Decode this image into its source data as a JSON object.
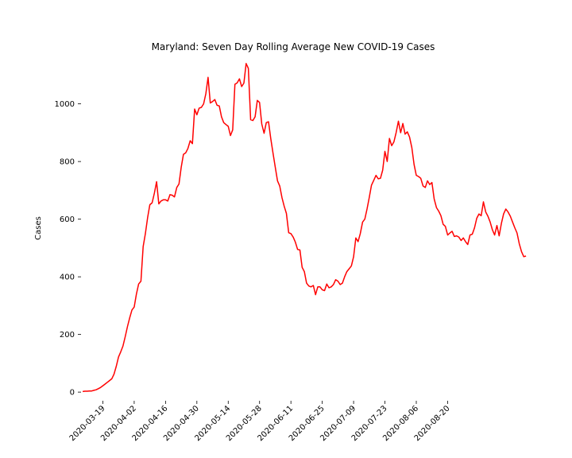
{
  "chart_data": {
    "type": "line",
    "title": "Maryland: Seven Day Rolling Average New COVID-19 Cases",
    "xlabel": "",
    "ylabel": "Cases",
    "ylim": [
      -30,
      1170
    ],
    "xlim": [
      "2020-03-05",
      "2020-09-19"
    ],
    "grid": false,
    "x_ticks": [
      "2020-03-19",
      "2020-04-02",
      "2020-04-16",
      "2020-04-30",
      "2020-05-14",
      "2020-05-28",
      "2020-06-11",
      "2020-06-25",
      "2020-07-09",
      "2020-07-23",
      "2020-08-06",
      "2020-08-20"
    ],
    "y_ticks": [
      0,
      200,
      400,
      600,
      800,
      1000
    ],
    "series": [
      {
        "color": "#ff0000",
        "points": [
          [
            "2020-03-10",
            2
          ],
          [
            "2020-03-11",
            3
          ],
          [
            "2020-03-12",
            3
          ],
          [
            "2020-03-13",
            4
          ],
          [
            "2020-03-14",
            4
          ],
          [
            "2020-03-15",
            6
          ],
          [
            "2020-03-16",
            8
          ],
          [
            "2020-03-17",
            12
          ],
          [
            "2020-03-18",
            16
          ],
          [
            "2020-03-19",
            22
          ],
          [
            "2020-03-20",
            28
          ],
          [
            "2020-03-21",
            34
          ],
          [
            "2020-03-22",
            40
          ],
          [
            "2020-03-23",
            46
          ],
          [
            "2020-03-24",
            62
          ],
          [
            "2020-03-25",
            90
          ],
          [
            "2020-03-26",
            122
          ],
          [
            "2020-03-27",
            140
          ],
          [
            "2020-03-28",
            160
          ],
          [
            "2020-03-29",
            192
          ],
          [
            "2020-03-30",
            228
          ],
          [
            "2020-03-31",
            258
          ],
          [
            "2020-04-01",
            285
          ],
          [
            "2020-04-02",
            295
          ],
          [
            "2020-04-03",
            340
          ],
          [
            "2020-04-04",
            375
          ],
          [
            "2020-04-05",
            385
          ],
          [
            "2020-04-06",
            505
          ],
          [
            "2020-04-07",
            550
          ],
          [
            "2020-04-08",
            605
          ],
          [
            "2020-04-09",
            650
          ],
          [
            "2020-04-10",
            657
          ],
          [
            "2020-04-11",
            690
          ],
          [
            "2020-04-12",
            730
          ],
          [
            "2020-04-13",
            653
          ],
          [
            "2020-04-14",
            663
          ],
          [
            "2020-04-15",
            667
          ],
          [
            "2020-04-16",
            667
          ],
          [
            "2020-04-17",
            663
          ],
          [
            "2020-04-18",
            685
          ],
          [
            "2020-04-19",
            683
          ],
          [
            "2020-04-20",
            677
          ],
          [
            "2020-04-21",
            710
          ],
          [
            "2020-04-22",
            722
          ],
          [
            "2020-04-23",
            780
          ],
          [
            "2020-04-24",
            825
          ],
          [
            "2020-04-25",
            830
          ],
          [
            "2020-04-26",
            845
          ],
          [
            "2020-04-27",
            872
          ],
          [
            "2020-04-28",
            862
          ],
          [
            "2020-04-29",
            982
          ],
          [
            "2020-04-30",
            962
          ],
          [
            "2020-05-01",
            985
          ],
          [
            "2020-05-02",
            988
          ],
          [
            "2020-05-03",
            1000
          ],
          [
            "2020-05-04",
            1035
          ],
          [
            "2020-05-05",
            1092
          ],
          [
            "2020-05-06",
            1003
          ],
          [
            "2020-05-07",
            1008
          ],
          [
            "2020-05-08",
            1015
          ],
          [
            "2020-05-09",
            995
          ],
          [
            "2020-05-10",
            993
          ],
          [
            "2020-05-11",
            955
          ],
          [
            "2020-05-12",
            935
          ],
          [
            "2020-05-13",
            928
          ],
          [
            "2020-05-14",
            922
          ],
          [
            "2020-05-15",
            890
          ],
          [
            "2020-05-16",
            910
          ],
          [
            "2020-05-17",
            1068
          ],
          [
            "2020-05-18",
            1073
          ],
          [
            "2020-05-19",
            1087
          ],
          [
            "2020-05-20",
            1060
          ],
          [
            "2020-05-21",
            1072
          ],
          [
            "2020-05-22",
            1140
          ],
          [
            "2020-05-23",
            1123
          ],
          [
            "2020-05-24",
            945
          ],
          [
            "2020-05-25",
            942
          ],
          [
            "2020-05-26",
            955
          ],
          [
            "2020-05-27",
            1012
          ],
          [
            "2020-05-28",
            1005
          ],
          [
            "2020-05-29",
            930
          ],
          [
            "2020-05-30",
            898
          ],
          [
            "2020-05-31",
            935
          ],
          [
            "2020-06-01",
            938
          ],
          [
            "2020-06-02",
            880
          ],
          [
            "2020-06-03",
            830
          ],
          [
            "2020-06-04",
            780
          ],
          [
            "2020-06-05",
            733
          ],
          [
            "2020-06-06",
            715
          ],
          [
            "2020-06-07",
            675
          ],
          [
            "2020-06-08",
            645
          ],
          [
            "2020-06-09",
            620
          ],
          [
            "2020-06-10",
            553
          ],
          [
            "2020-06-11",
            550
          ],
          [
            "2020-06-12",
            538
          ],
          [
            "2020-06-13",
            520
          ],
          [
            "2020-06-14",
            495
          ],
          [
            "2020-06-15",
            493
          ],
          [
            "2020-06-16",
            433
          ],
          [
            "2020-06-17",
            418
          ],
          [
            "2020-06-18",
            378
          ],
          [
            "2020-06-19",
            368
          ],
          [
            "2020-06-20",
            365
          ],
          [
            "2020-06-21",
            370
          ],
          [
            "2020-06-22",
            338
          ],
          [
            "2020-06-23",
            365
          ],
          [
            "2020-06-24",
            365
          ],
          [
            "2020-06-25",
            355
          ],
          [
            "2020-06-26",
            352
          ],
          [
            "2020-06-27",
            375
          ],
          [
            "2020-06-28",
            362
          ],
          [
            "2020-06-29",
            365
          ],
          [
            "2020-06-30",
            373
          ],
          [
            "2020-07-01",
            390
          ],
          [
            "2020-07-02",
            385
          ],
          [
            "2020-07-03",
            373
          ],
          [
            "2020-07-04",
            378
          ],
          [
            "2020-07-05",
            400
          ],
          [
            "2020-07-06",
            418
          ],
          [
            "2020-07-07",
            428
          ],
          [
            "2020-07-08",
            438
          ],
          [
            "2020-07-09",
            470
          ],
          [
            "2020-07-10",
            535
          ],
          [
            "2020-07-11",
            522
          ],
          [
            "2020-07-12",
            550
          ],
          [
            "2020-07-13",
            590
          ],
          [
            "2020-07-14",
            600
          ],
          [
            "2020-07-15",
            635
          ],
          [
            "2020-07-16",
            675
          ],
          [
            "2020-07-17",
            718
          ],
          [
            "2020-07-18",
            735
          ],
          [
            "2020-07-19",
            752
          ],
          [
            "2020-07-20",
            740
          ],
          [
            "2020-07-21",
            742
          ],
          [
            "2020-07-22",
            770
          ],
          [
            "2020-07-23",
            835
          ],
          [
            "2020-07-24",
            800
          ],
          [
            "2020-07-25",
            880
          ],
          [
            "2020-07-26",
            855
          ],
          [
            "2020-07-27",
            868
          ],
          [
            "2020-07-28",
            900
          ],
          [
            "2020-07-29",
            940
          ],
          [
            "2020-07-30",
            900
          ],
          [
            "2020-07-31",
            932
          ],
          [
            "2020-08-01",
            895
          ],
          [
            "2020-08-02",
            903
          ],
          [
            "2020-08-03",
            885
          ],
          [
            "2020-08-04",
            848
          ],
          [
            "2020-08-05",
            790
          ],
          [
            "2020-08-06",
            752
          ],
          [
            "2020-08-07",
            748
          ],
          [
            "2020-08-08",
            742
          ],
          [
            "2020-08-09",
            715
          ],
          [
            "2020-08-10",
            710
          ],
          [
            "2020-08-11",
            733
          ],
          [
            "2020-08-12",
            720
          ],
          [
            "2020-08-13",
            727
          ],
          [
            "2020-08-14",
            670
          ],
          [
            "2020-08-15",
            640
          ],
          [
            "2020-08-16",
            628
          ],
          [
            "2020-08-17",
            612
          ],
          [
            "2020-08-18",
            582
          ],
          [
            "2020-08-19",
            575
          ],
          [
            "2020-08-20",
            545
          ],
          [
            "2020-08-21",
            552
          ],
          [
            "2020-08-22",
            558
          ],
          [
            "2020-08-23",
            540
          ],
          [
            "2020-08-24",
            542
          ],
          [
            "2020-08-25",
            538
          ],
          [
            "2020-08-26",
            526
          ],
          [
            "2020-08-27",
            535
          ],
          [
            "2020-08-28",
            522
          ],
          [
            "2020-08-29",
            512
          ],
          [
            "2020-08-30",
            545
          ],
          [
            "2020-08-31",
            548
          ],
          [
            "2020-09-01",
            570
          ],
          [
            "2020-09-02",
            603
          ],
          [
            "2020-09-03",
            618
          ],
          [
            "2020-09-04",
            612
          ],
          [
            "2020-09-05",
            660
          ],
          [
            "2020-09-06",
            625
          ],
          [
            "2020-09-07",
            610
          ],
          [
            "2020-09-08",
            590
          ],
          [
            "2020-09-09",
            563
          ],
          [
            "2020-09-10",
            545
          ],
          [
            "2020-09-11",
            578
          ],
          [
            "2020-09-12",
            542
          ],
          [
            "2020-09-13",
            585
          ],
          [
            "2020-09-14",
            618
          ],
          [
            "2020-09-15",
            635
          ],
          [
            "2020-09-16",
            625
          ],
          [
            "2020-09-17",
            610
          ],
          [
            "2020-09-18",
            590
          ],
          [
            "2020-09-19",
            570
          ],
          [
            "2020-09-20",
            552
          ],
          [
            "2020-09-21",
            515
          ],
          [
            "2020-09-22",
            487
          ],
          [
            "2020-09-23",
            470
          ],
          [
            "2020-09-24",
            472
          ]
        ]
      }
    ]
  }
}
